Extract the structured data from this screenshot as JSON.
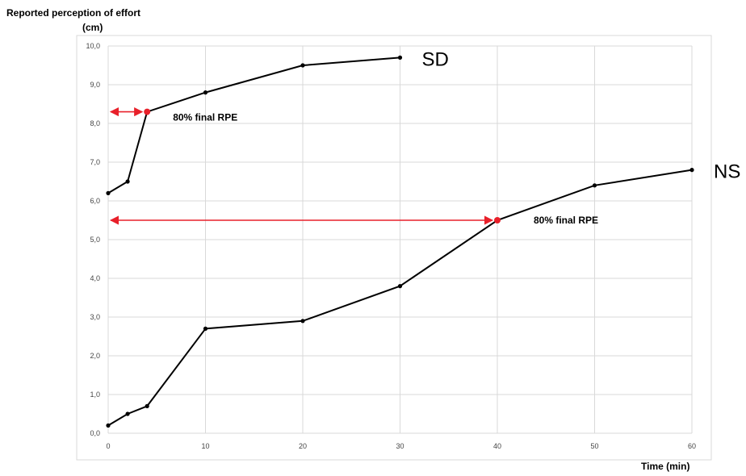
{
  "chart_data": {
    "type": "line",
    "title": "",
    "ylabel": "Reported perception of effort",
    "ylabel_unit": "(cm)",
    "xlabel": "Time (min)",
    "xlim": [
      0,
      60
    ],
    "ylim": [
      0,
      10
    ],
    "grid": true,
    "x_ticks": [
      0,
      10,
      20,
      30,
      40,
      50,
      60
    ],
    "y_ticks": [
      "0,0",
      "1,0",
      "2,0",
      "3,0",
      "4,0",
      "5,0",
      "6,0",
      "7,0",
      "8,0",
      "9,0",
      "10,0"
    ],
    "series": [
      {
        "name": "SD",
        "x": [
          0,
          2,
          4,
          10,
          20,
          30
        ],
        "y": [
          6.2,
          6.5,
          8.3,
          8.8,
          9.5,
          9.7
        ],
        "color": "#000000"
      },
      {
        "name": "NS",
        "x": [
          0,
          2,
          4,
          10,
          20,
          30,
          40,
          50,
          60
        ],
        "y": [
          0.2,
          0.5,
          0.7,
          2.7,
          2.9,
          3.8,
          5.5,
          6.4,
          6.8
        ],
        "color": "#000000"
      }
    ],
    "annotations": [
      {
        "text": "80% final RPE",
        "series": "SD",
        "x": 4,
        "y": 8.3,
        "color": "#e8202a"
      },
      {
        "text": "80% final RPE",
        "series": "NS",
        "x": 40,
        "y": 5.5,
        "color": "#e8202a"
      }
    ]
  }
}
